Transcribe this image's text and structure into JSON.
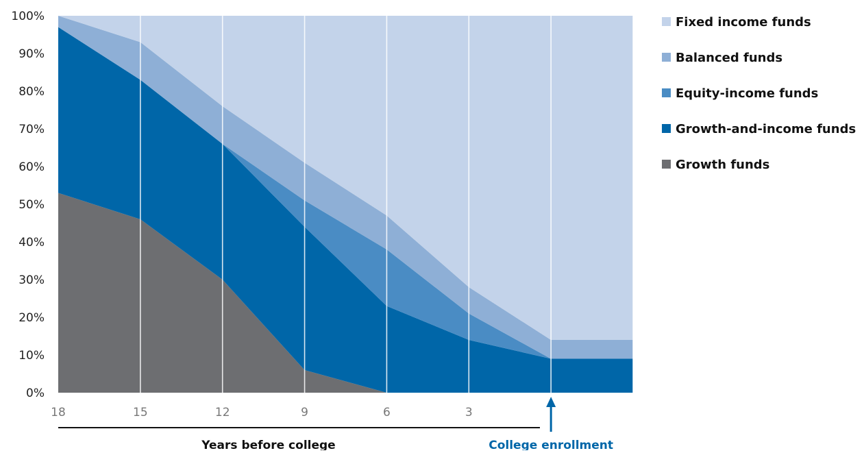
{
  "chart_data": {
    "type": "area",
    "stacked": true,
    "x": [
      18,
      15,
      12,
      9,
      6,
      3,
      0,
      -3
    ],
    "x_tick_labels": [
      "18",
      "15",
      "12",
      "9",
      "6",
      "3"
    ],
    "y_tick_labels": [
      "0%",
      "10%",
      "20%",
      "30%",
      "40%",
      "50%",
      "60%",
      "70%",
      "80%",
      "90%",
      "100%"
    ],
    "ylim": [
      0,
      100
    ],
    "y_unit": "%",
    "xlabel": "Years before college",
    "grid": "vertical",
    "legend_position": "right",
    "series": [
      {
        "name": "Growth funds",
        "color": "#6d6e71",
        "values": [
          53,
          46,
          30,
          6,
          0,
          0,
          0,
          0
        ]
      },
      {
        "name": "Growth-and-income funds",
        "color": "#0066a8",
        "values": [
          44,
          37,
          36,
          38,
          23,
          14,
          9,
          9
        ]
      },
      {
        "name": "Equity-income funds",
        "color": "#4a8cc4",
        "values": [
          0,
          0,
          0,
          7,
          15,
          7,
          0,
          0
        ]
      },
      {
        "name": "Balanced funds",
        "color": "#8eafd6",
        "values": [
          3,
          10,
          10,
          10,
          9,
          7,
          5,
          5
        ]
      },
      {
        "name": "Fixed income funds",
        "color": "#c3d3ea",
        "values": [
          0,
          7,
          24,
          39,
          53,
          72,
          86,
          86
        ]
      }
    ],
    "legend_order": [
      "Fixed income funds",
      "Balanced funds",
      "Equity-income funds",
      "Growth-and-income funds",
      "Growth funds"
    ],
    "annotation": {
      "text": "College enrollment",
      "x": 0,
      "color": "#0066a8"
    }
  }
}
